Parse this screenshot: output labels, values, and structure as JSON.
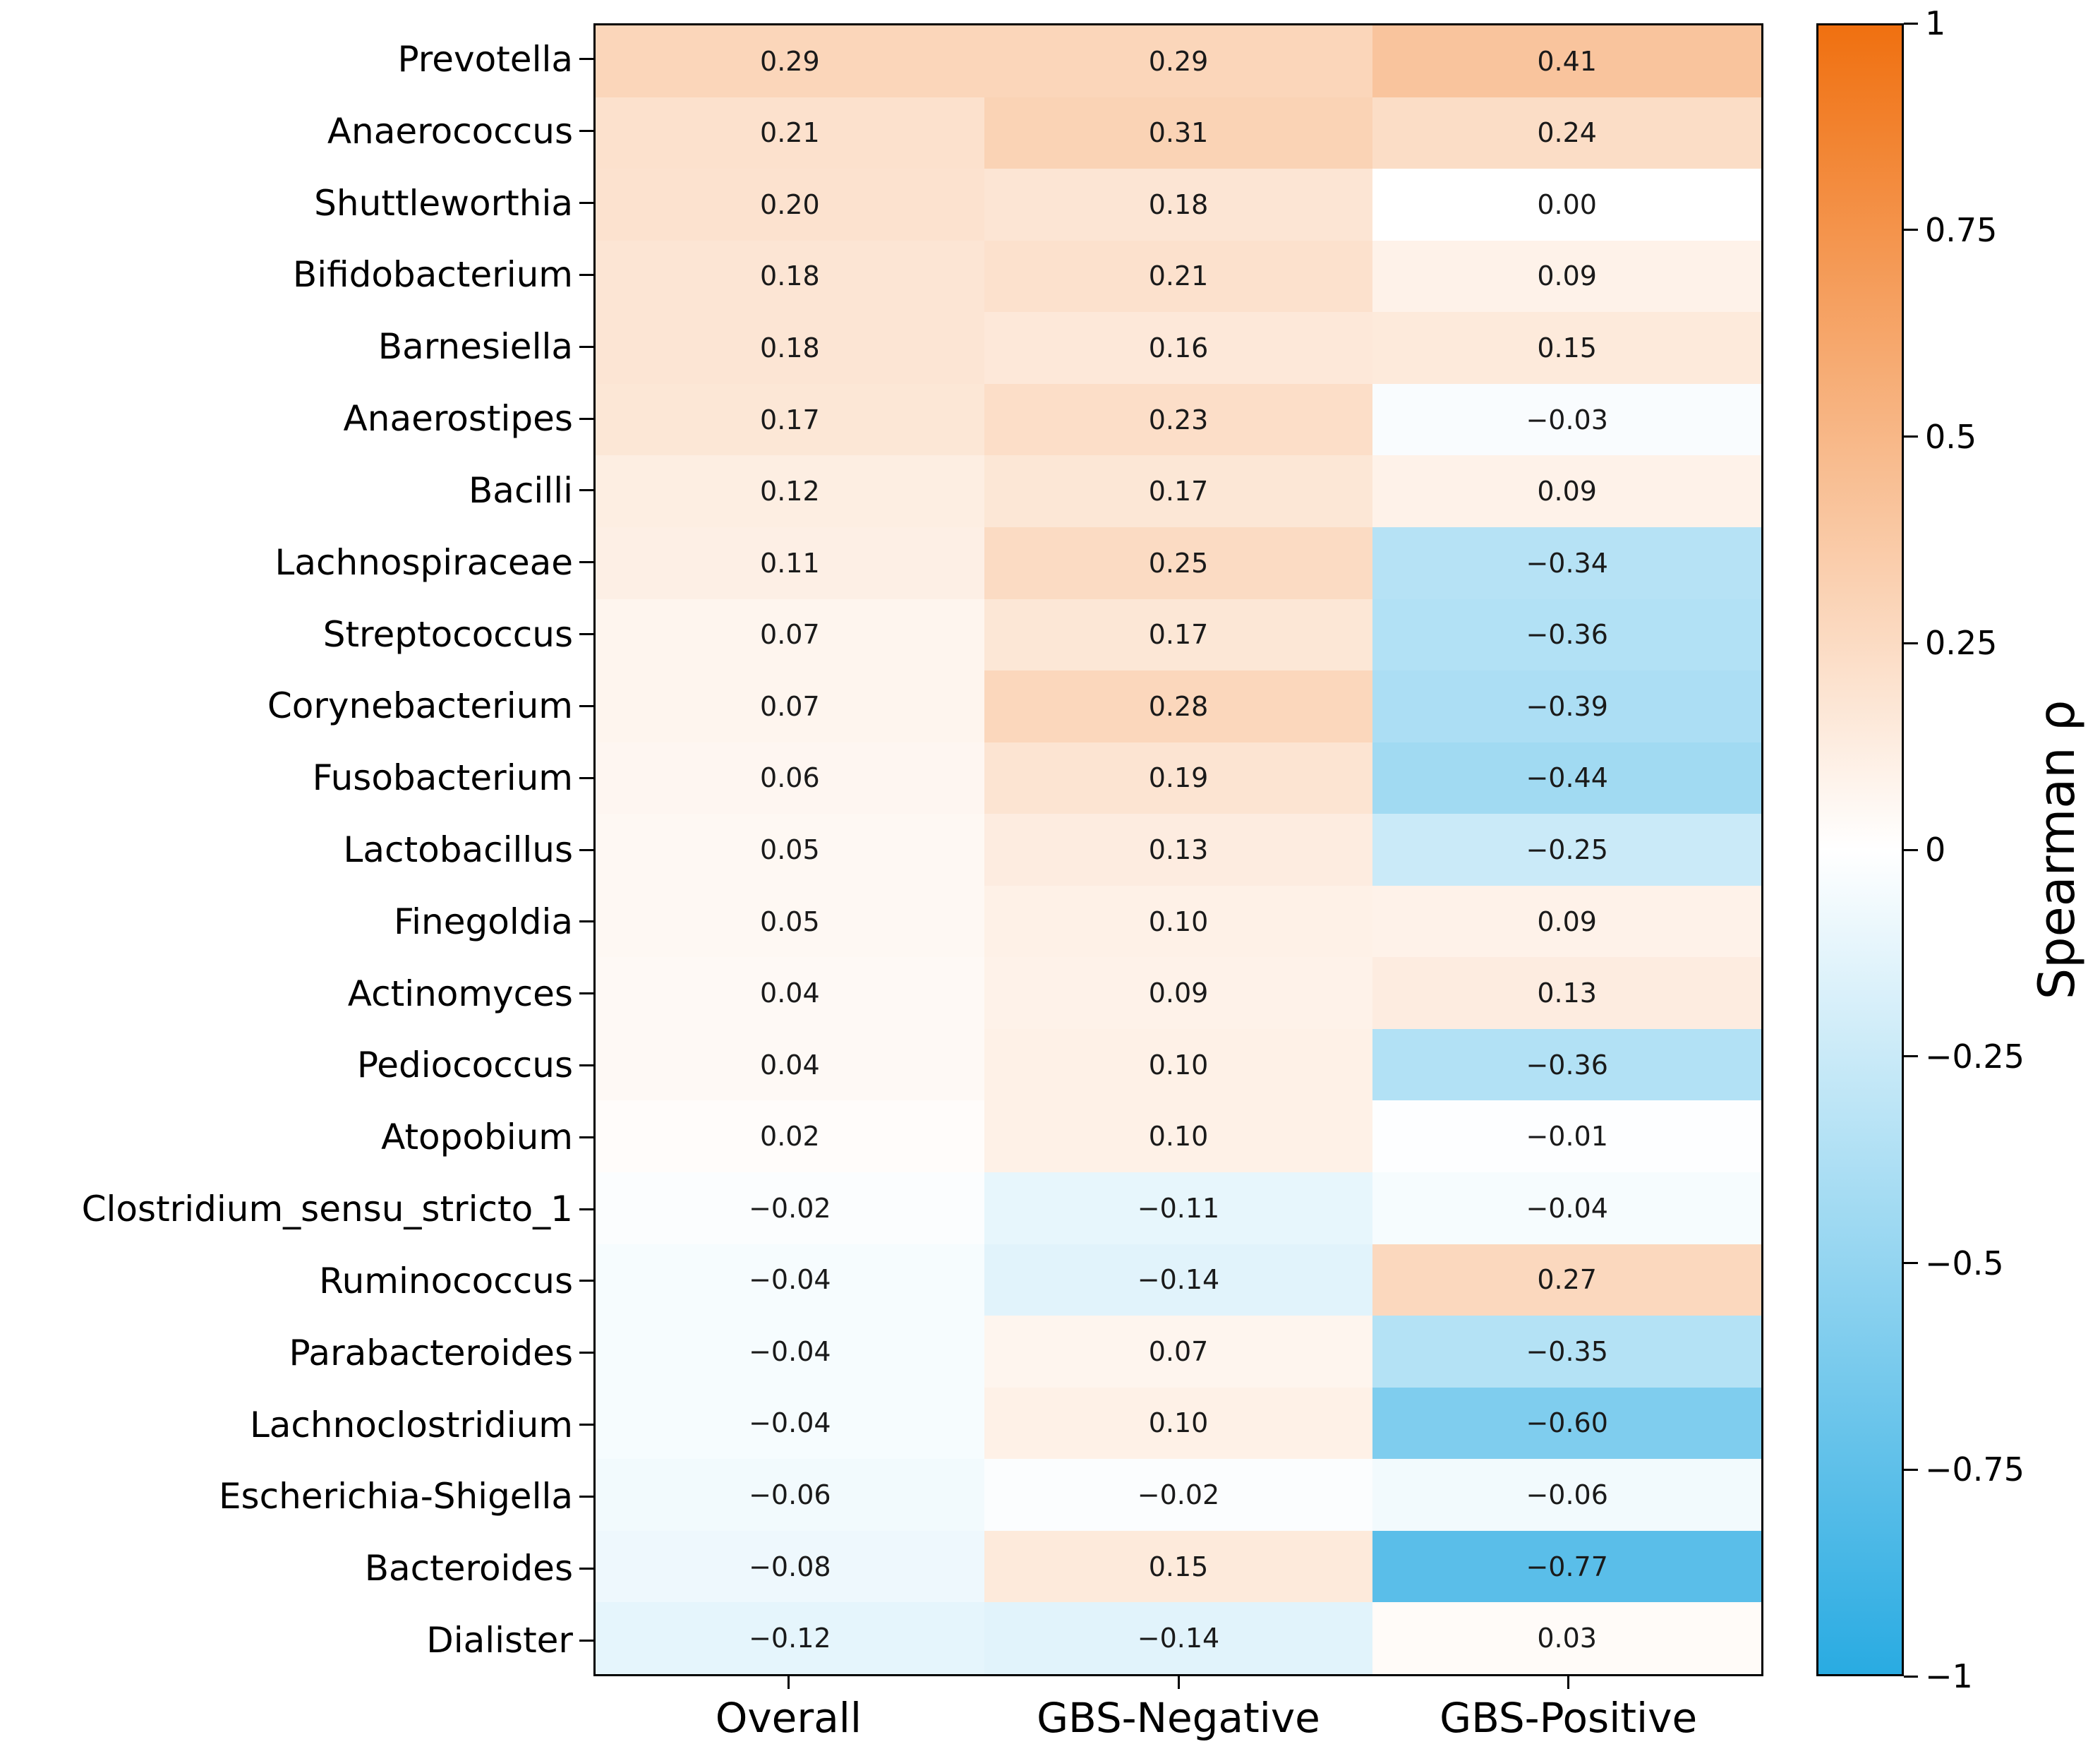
{
  "chart_data": {
    "type": "heatmap",
    "title": "",
    "xlabel": "",
    "ylabel": "",
    "columns": [
      "Overall",
      "GBS-Negative",
      "GBS-Positive"
    ],
    "rows": [
      "Prevotella",
      "Anaerococcus",
      "Shuttleworthia",
      "Bifidobacterium",
      "Barnesiella",
      "Anaerostipes",
      "Bacilli",
      "Lachnospiraceae",
      "Streptococcus",
      "Corynebacterium",
      "Fusobacterium",
      "Lactobacillus",
      "Finegoldia",
      "Actinomyces",
      "Pediococcus",
      "Atopobium",
      "Clostridium_sensu_stricto_1",
      "Ruminococcus",
      "Parabacteroides",
      "Lachnoclostridium",
      "Escherichia-Shigella",
      "Bacteroides",
      "Dialister"
    ],
    "values": [
      [
        0.29,
        0.29,
        0.41
      ],
      [
        0.21,
        0.31,
        0.24
      ],
      [
        0.2,
        0.18,
        0.0
      ],
      [
        0.18,
        0.21,
        0.09
      ],
      [
        0.18,
        0.16,
        0.15
      ],
      [
        0.17,
        0.23,
        -0.03
      ],
      [
        0.12,
        0.17,
        0.09
      ],
      [
        0.11,
        0.25,
        -0.34
      ],
      [
        0.07,
        0.17,
        -0.36
      ],
      [
        0.07,
        0.28,
        -0.39
      ],
      [
        0.06,
        0.19,
        -0.44
      ],
      [
        0.05,
        0.13,
        -0.25
      ],
      [
        0.05,
        0.1,
        0.09
      ],
      [
        0.04,
        0.09,
        0.13
      ],
      [
        0.04,
        0.1,
        -0.36
      ],
      [
        0.02,
        0.1,
        -0.01
      ],
      [
        -0.02,
        -0.11,
        -0.04
      ],
      [
        -0.04,
        -0.14,
        0.27
      ],
      [
        -0.04,
        0.07,
        -0.35
      ],
      [
        -0.04,
        0.1,
        -0.6
      ],
      [
        -0.06,
        -0.02,
        -0.06
      ],
      [
        -0.08,
        0.15,
        -0.77
      ],
      [
        -0.12,
        -0.14,
        0.03
      ]
    ],
    "colorbar": {
      "label": "Spearman ρ",
      "tick_labels": [
        "1",
        "0.75",
        "0.5",
        "0.25",
        "0",
        "−0.25",
        "−0.5",
        "−0.75",
        "−1"
      ],
      "tick_values": [
        1,
        0.75,
        0.5,
        0.25,
        0,
        -0.25,
        -0.5,
        -0.75,
        -1
      ],
      "range": [
        -1,
        1
      ],
      "positive_color": "#F07010",
      "mid_color": "#FFFFFF",
      "negative_color": "#29ABE2"
    },
    "grid": false,
    "legend_position": "right-colorbar"
  }
}
